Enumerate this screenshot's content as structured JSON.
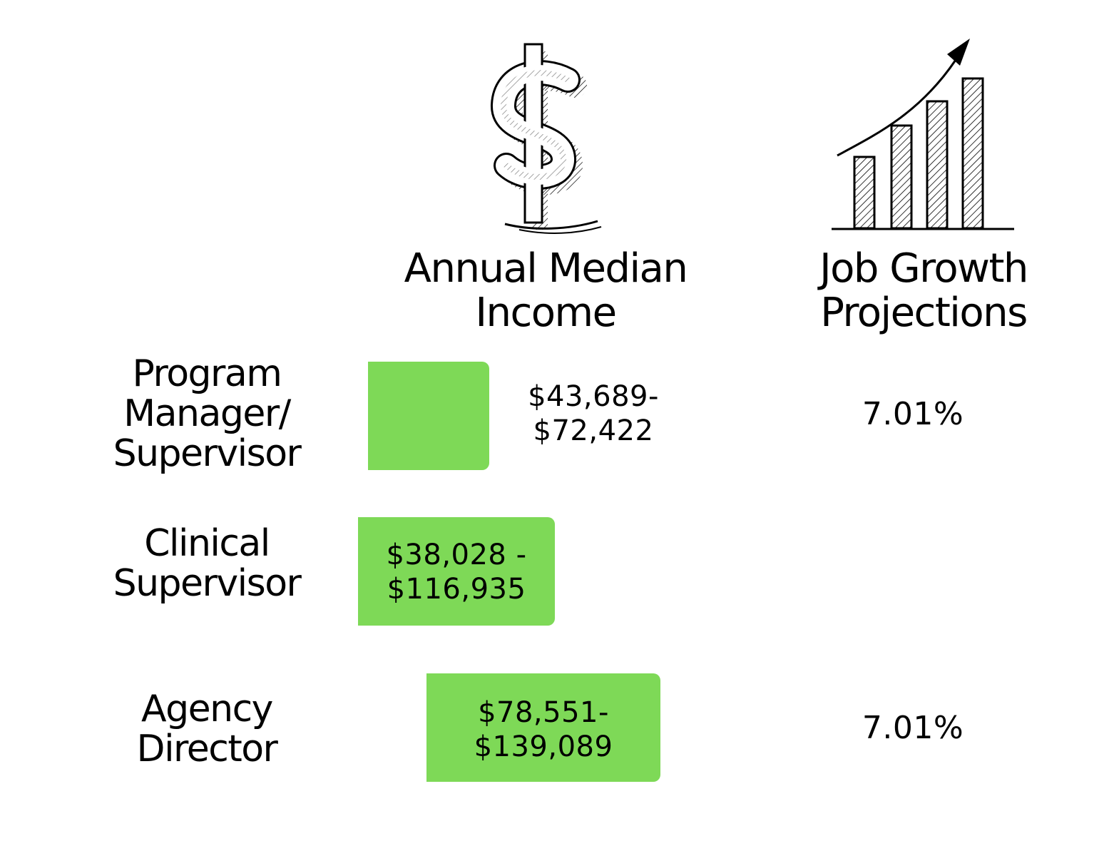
{
  "icons": {
    "income": "dollar-sign-sketch",
    "growth": "bar-chart-growth-sketch"
  },
  "headers": {
    "income": [
      "Annual Median",
      "Income"
    ],
    "growth": [
      "Job Growth",
      "Projections"
    ]
  },
  "bar_color": "#7ed957",
  "rows": [
    {
      "label": [
        "Program",
        "Manager/",
        "Supervisor"
      ],
      "range": [
        "$43,689-",
        "$72,422"
      ],
      "growth": "7.01%"
    },
    {
      "label": [
        "Clinical",
        "Supervisor"
      ],
      "range": [
        "$38,028 -",
        "$116,935"
      ],
      "growth": ""
    },
    {
      "label": [
        "Agency",
        "Director"
      ],
      "range": [
        "$78,551-",
        "$139,089"
      ],
      "growth": "7.01%"
    }
  ]
}
